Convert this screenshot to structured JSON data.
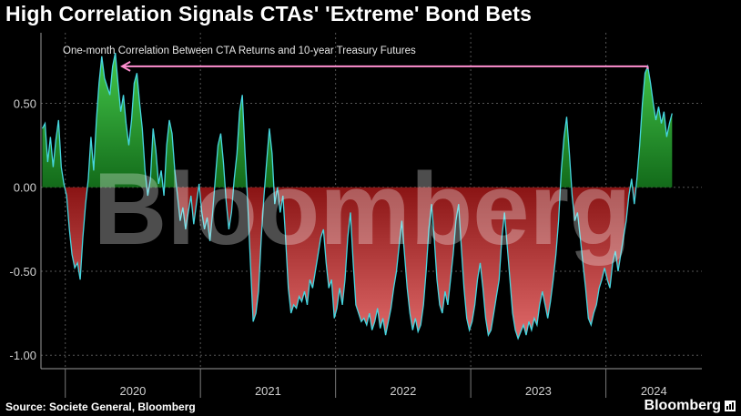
{
  "title": "High Correlation Signals CTAs' 'Extreme' Bond Bets",
  "source": "Source: Societe General, Bloomberg",
  "brand": "Bloomberg",
  "watermark": "Bloomberg",
  "colors": {
    "line": "#46d6e0",
    "positive_fill": "#1f9e2a",
    "negative_fill": "#b42828",
    "arrow": "#ff8fd0",
    "grid": "#555555"
  },
  "chart_data": {
    "type": "area",
    "subtitle": "One-month Correlation Between CTA Returns and 10-year Treasury Futures",
    "xlabel": "",
    "ylabel": "",
    "x_tick_labels": [
      "2020",
      "2021",
      "2022",
      "2023",
      "2024"
    ],
    "y_tick_labels": [
      "0.50",
      "0.00",
      "-0.50",
      "-1.00"
    ],
    "y_ticks": [
      0.5,
      0.0,
      -0.5,
      -1.0
    ],
    "ylim": [
      -1.08,
      0.92
    ],
    "xlim": [
      2019.82,
      2024.71
    ],
    "grid": "horizontal dashed",
    "annotation": "arrow at the March 2024 high pointing back to the 2020 peak",
    "series": [
      {
        "points": [
          [
            2019.83,
            0.35
          ],
          [
            2019.85,
            0.38
          ],
          [
            2019.87,
            0.15
          ],
          [
            2019.89,
            0.3
          ],
          [
            2019.91,
            0.12
          ],
          [
            2019.93,
            0.28
          ],
          [
            2019.95,
            0.4
          ],
          [
            2019.97,
            0.12
          ],
          [
            2019.99,
            0.02
          ],
          [
            2020.01,
            -0.05
          ],
          [
            2020.03,
            -0.25
          ],
          [
            2020.05,
            -0.4
          ],
          [
            2020.07,
            -0.48
          ],
          [
            2020.09,
            -0.45
          ],
          [
            2020.11,
            -0.55
          ],
          [
            2020.13,
            -0.3
          ],
          [
            2020.15,
            -0.1
          ],
          [
            2020.17,
            0.05
          ],
          [
            2020.19,
            0.3
          ],
          [
            2020.21,
            0.1
          ],
          [
            2020.23,
            0.4
          ],
          [
            2020.25,
            0.62
          ],
          [
            2020.27,
            0.78
          ],
          [
            2020.29,
            0.65
          ],
          [
            2020.31,
            0.6
          ],
          [
            2020.33,
            0.55
          ],
          [
            2020.35,
            0.72
          ],
          [
            2020.37,
            0.8
          ],
          [
            2020.39,
            0.62
          ],
          [
            2020.41,
            0.45
          ],
          [
            2020.43,
            0.55
          ],
          [
            2020.45,
            0.38
          ],
          [
            2020.47,
            0.25
          ],
          [
            2020.49,
            0.4
          ],
          [
            2020.51,
            0.62
          ],
          [
            2020.53,
            0.68
          ],
          [
            2020.55,
            0.5
          ],
          [
            2020.57,
            0.35
          ],
          [
            2020.59,
            0.1
          ],
          [
            2020.61,
            -0.05
          ],
          [
            2020.63,
            0.05
          ],
          [
            2020.65,
            0.35
          ],
          [
            2020.67,
            0.22
          ],
          [
            2020.69,
            0.02
          ],
          [
            2020.71,
            0.1
          ],
          [
            2020.73,
            -0.05
          ],
          [
            2020.75,
            0.25
          ],
          [
            2020.77,
            0.4
          ],
          [
            2020.79,
            0.32
          ],
          [
            2020.81,
            0.1
          ],
          [
            2020.83,
            -0.05
          ],
          [
            2020.85,
            -0.2
          ],
          [
            2020.87,
            -0.12
          ],
          [
            2020.89,
            -0.25
          ],
          [
            2020.91,
            -0.15
          ],
          [
            2020.93,
            -0.05
          ],
          [
            2020.95,
            -0.22
          ],
          [
            2020.97,
            -0.1
          ],
          [
            2020.99,
            0.02
          ],
          [
            2021.01,
            -0.15
          ],
          [
            2021.03,
            -0.25
          ],
          [
            2021.05,
            -0.18
          ],
          [
            2021.07,
            -0.32
          ],
          [
            2021.09,
            -0.15
          ],
          [
            2021.11,
            0.05
          ],
          [
            2021.13,
            0.25
          ],
          [
            2021.15,
            0.32
          ],
          [
            2021.17,
            0.15
          ],
          [
            2021.19,
            -0.08
          ],
          [
            2021.21,
            -0.25
          ],
          [
            2021.23,
            -0.15
          ],
          [
            2021.25,
            0.05
          ],
          [
            2021.27,
            0.2
          ],
          [
            2021.29,
            0.45
          ],
          [
            2021.31,
            0.55
          ],
          [
            2021.33,
            0.2
          ],
          [
            2021.35,
            -0.1
          ],
          [
            2021.37,
            -0.45
          ],
          [
            2021.39,
            -0.8
          ],
          [
            2021.41,
            -0.75
          ],
          [
            2021.43,
            -0.62
          ],
          [
            2021.45,
            -0.3
          ],
          [
            2021.47,
            -0.05
          ],
          [
            2021.49,
            0.15
          ],
          [
            2021.51,
            0.35
          ],
          [
            2021.53,
            0.2
          ],
          [
            2021.55,
            -0.1
          ],
          [
            2021.57,
            0.0
          ],
          [
            2021.59,
            -0.15
          ],
          [
            2021.61,
            -0.05
          ],
          [
            2021.63,
            -0.3
          ],
          [
            2021.65,
            -0.6
          ],
          [
            2021.67,
            -0.75
          ],
          [
            2021.69,
            -0.7
          ],
          [
            2021.71,
            -0.72
          ],
          [
            2021.73,
            -0.65
          ],
          [
            2021.75,
            -0.68
          ],
          [
            2021.77,
            -0.62
          ],
          [
            2021.79,
            -0.7
          ],
          [
            2021.81,
            -0.55
          ],
          [
            2021.83,
            -0.6
          ],
          [
            2021.85,
            -0.5
          ],
          [
            2021.87,
            -0.4
          ],
          [
            2021.89,
            -0.3
          ],
          [
            2021.91,
            -0.25
          ],
          [
            2021.93,
            -0.45
          ],
          [
            2021.95,
            -0.6
          ],
          [
            2021.97,
            -0.55
          ],
          [
            2021.99,
            -0.78
          ],
          [
            2022.01,
            -0.72
          ],
          [
            2022.03,
            -0.6
          ],
          [
            2022.05,
            -0.7
          ],
          [
            2022.07,
            -0.55
          ],
          [
            2022.09,
            -0.3
          ],
          [
            2022.11,
            -0.15
          ],
          [
            2022.13,
            -0.45
          ],
          [
            2022.15,
            -0.7
          ],
          [
            2022.17,
            -0.75
          ],
          [
            2022.19,
            -0.8
          ],
          [
            2022.21,
            -0.78
          ],
          [
            2022.23,
            -0.82
          ],
          [
            2022.25,
            -0.75
          ],
          [
            2022.27,
            -0.85
          ],
          [
            2022.29,
            -0.8
          ],
          [
            2022.31,
            -0.72
          ],
          [
            2022.33,
            -0.84
          ],
          [
            2022.35,
            -0.78
          ],
          [
            2022.37,
            -0.88
          ],
          [
            2022.39,
            -0.8
          ],
          [
            2022.41,
            -0.72
          ],
          [
            2022.43,
            -0.6
          ],
          [
            2022.45,
            -0.5
          ],
          [
            2022.47,
            -0.35
          ],
          [
            2022.49,
            -0.2
          ],
          [
            2022.51,
            -0.4
          ],
          [
            2022.53,
            -0.6
          ],
          [
            2022.55,
            -0.75
          ],
          [
            2022.57,
            -0.85
          ],
          [
            2022.59,
            -0.78
          ],
          [
            2022.61,
            -0.86
          ],
          [
            2022.63,
            -0.82
          ],
          [
            2022.65,
            -0.7
          ],
          [
            2022.67,
            -0.5
          ],
          [
            2022.69,
            -0.25
          ],
          [
            2022.71,
            -0.1
          ],
          [
            2022.73,
            -0.3
          ],
          [
            2022.75,
            -0.55
          ],
          [
            2022.77,
            -0.7
          ],
          [
            2022.79,
            -0.75
          ],
          [
            2022.81,
            -0.62
          ],
          [
            2022.83,
            -0.7
          ],
          [
            2022.85,
            -0.55
          ],
          [
            2022.87,
            -0.4
          ],
          [
            2022.89,
            -0.2
          ],
          [
            2022.91,
            -0.1
          ],
          [
            2022.93,
            -0.35
          ],
          [
            2022.95,
            -0.6
          ],
          [
            2022.97,
            -0.78
          ],
          [
            2022.99,
            -0.85
          ],
          [
            2023.01,
            -0.8
          ],
          [
            2023.03,
            -0.7
          ],
          [
            2023.05,
            -0.55
          ],
          [
            2023.07,
            -0.45
          ],
          [
            2023.09,
            -0.6
          ],
          [
            2023.11,
            -0.78
          ],
          [
            2023.13,
            -0.88
          ],
          [
            2023.15,
            -0.85
          ],
          [
            2023.17,
            -0.75
          ],
          [
            2023.19,
            -0.65
          ],
          [
            2023.21,
            -0.55
          ],
          [
            2023.23,
            -0.3
          ],
          [
            2023.25,
            -0.15
          ],
          [
            2023.27,
            -0.35
          ],
          [
            2023.29,
            -0.55
          ],
          [
            2023.31,
            -0.75
          ],
          [
            2023.33,
            -0.85
          ],
          [
            2023.35,
            -0.9
          ],
          [
            2023.37,
            -0.86
          ],
          [
            2023.39,
            -0.82
          ],
          [
            2023.41,
            -0.88
          ],
          [
            2023.43,
            -0.8
          ],
          [
            2023.45,
            -0.85
          ],
          [
            2023.47,
            -0.78
          ],
          [
            2023.49,
            -0.82
          ],
          [
            2023.51,
            -0.7
          ],
          [
            2023.53,
            -0.62
          ],
          [
            2023.55,
            -0.7
          ],
          [
            2023.57,
            -0.78
          ],
          [
            2023.59,
            -0.68
          ],
          [
            2023.61,
            -0.55
          ],
          [
            2023.63,
            -0.4
          ],
          [
            2023.65,
            -0.2
          ],
          [
            2023.67,
            0.1
          ],
          [
            2023.69,
            0.3
          ],
          [
            2023.71,
            0.42
          ],
          [
            2023.73,
            0.2
          ],
          [
            2023.75,
            -0.05
          ],
          [
            2023.77,
            -0.2
          ],
          [
            2023.79,
            -0.15
          ],
          [
            2023.81,
            -0.3
          ],
          [
            2023.83,
            -0.45
          ],
          [
            2023.85,
            -0.6
          ],
          [
            2023.87,
            -0.78
          ],
          [
            2023.89,
            -0.82
          ],
          [
            2023.91,
            -0.75
          ],
          [
            2023.93,
            -0.7
          ],
          [
            2023.95,
            -0.6
          ],
          [
            2023.97,
            -0.55
          ],
          [
            2023.99,
            -0.48
          ],
          [
            2024.01,
            -0.55
          ],
          [
            2024.03,
            -0.6
          ],
          [
            2024.05,
            -0.45
          ],
          [
            2024.07,
            -0.38
          ],
          [
            2024.09,
            -0.5
          ],
          [
            2024.11,
            -0.4
          ],
          [
            2024.13,
            -0.3
          ],
          [
            2024.15,
            -0.2
          ],
          [
            2024.17,
            -0.05
          ],
          [
            2024.19,
            0.05
          ],
          [
            2024.21,
            -0.1
          ],
          [
            2024.23,
            0.05
          ],
          [
            2024.25,
            0.25
          ],
          [
            2024.27,
            0.5
          ],
          [
            2024.29,
            0.68
          ],
          [
            2024.31,
            0.72
          ],
          [
            2024.33,
            0.62
          ],
          [
            2024.35,
            0.5
          ],
          [
            2024.37,
            0.4
          ],
          [
            2024.39,
            0.48
          ],
          [
            2024.41,
            0.38
          ],
          [
            2024.43,
            0.45
          ],
          [
            2024.45,
            0.3
          ],
          [
            2024.47,
            0.38
          ],
          [
            2024.49,
            0.44
          ]
        ]
      }
    ]
  }
}
